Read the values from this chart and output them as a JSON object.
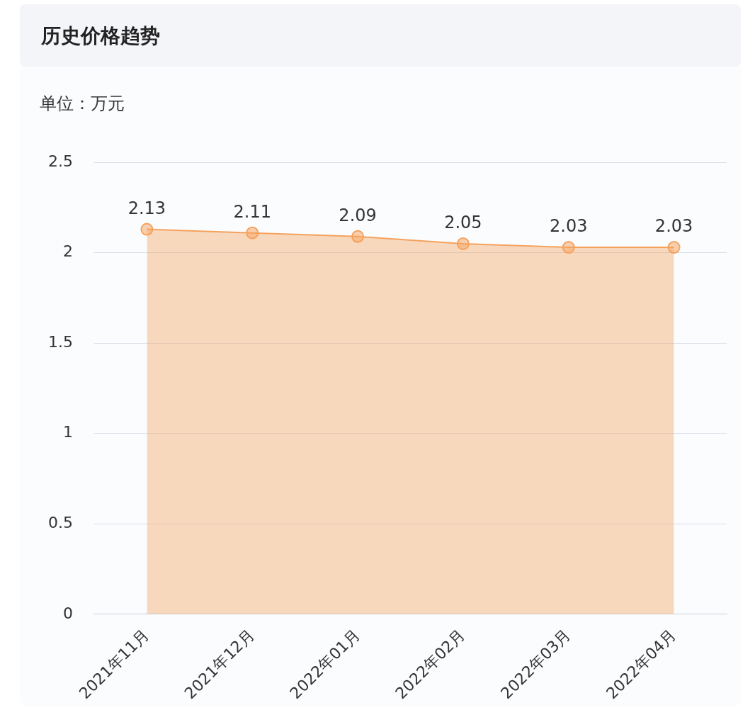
{
  "chart_data": {
    "type": "area",
    "title": "历史价格趋势",
    "ylabel": "单位：万元",
    "categories": [
      "2021年11月",
      "2021年12月",
      "2022年01月",
      "2022年02月",
      "2022年03月",
      "2022年04月"
    ],
    "series": [
      {
        "color": "#f5a25d",
        "values": [
          2.13,
          2.11,
          2.09,
          2.05,
          2.03,
          2.03
        ]
      }
    ],
    "ylim": [
      0,
      2.5
    ],
    "yticks": [
      0,
      0.5,
      1,
      1.5,
      2,
      2.5
    ],
    "grid": "y",
    "marker": "circle",
    "data_labels": true,
    "legend": false
  }
}
